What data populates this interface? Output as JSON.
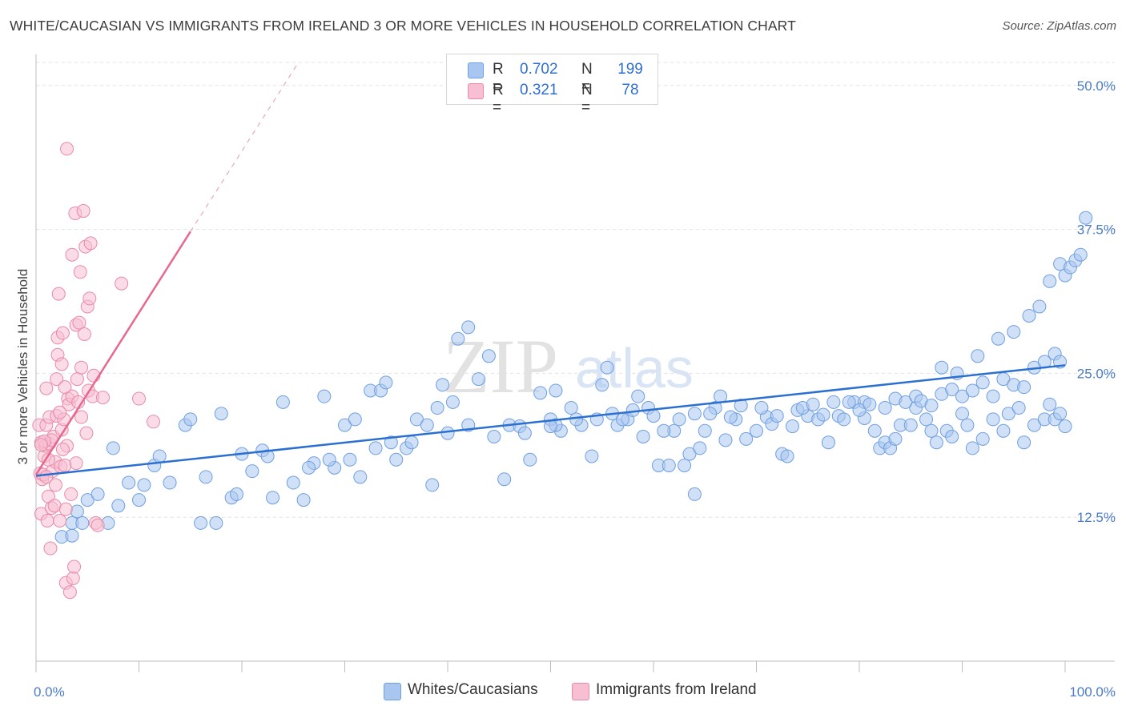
{
  "title": "WHITE/CAUCASIAN VS IMMIGRANTS FROM IRELAND 3 OR MORE VEHICLES IN HOUSEHOLD CORRELATION CHART",
  "source": "Source: ZipAtlas.com",
  "watermark": {
    "zip": "ZIP",
    "atlas": "atlas"
  },
  "legend": {
    "rows": [
      {
        "r_label": "R =",
        "r_value": "0.702",
        "n_label": "N =",
        "n_value": "199",
        "color": "#a9c6f0",
        "border": "#6f9fe0"
      },
      {
        "r_label": "R =",
        "r_value": "0.321",
        "n_label": "N =",
        "n_value": "78",
        "color": "#f7bfd1",
        "border": "#e88aa8"
      }
    ]
  },
  "bottom_legend": {
    "items": [
      {
        "label": "Whites/Caucasians",
        "color": "#a9c6f0",
        "border": "#6f9fe0"
      },
      {
        "label": "Immigrants from Ireland",
        "color": "#f7bfd1",
        "border": "#e88aa8"
      }
    ]
  },
  "chart_data": {
    "type": "scatter",
    "title": "WHITE/CAUCASIAN VS IMMIGRANTS FROM IRELAND 3 OR MORE VEHICLES IN HOUSEHOLD CORRELATION CHART",
    "xlabel": "",
    "ylabel": "3 or more Vehicles in Household",
    "xlim": [
      0,
      100
    ],
    "ylim": [
      0,
      52
    ],
    "x_tick_labels": [
      "0.0%",
      "100.0%"
    ],
    "y_ticks": [
      12.5,
      25.0,
      37.5,
      50.0
    ],
    "y_tick_labels": [
      "12.5%",
      "25.0%",
      "37.5%",
      "50.0%"
    ],
    "grid": true,
    "series": [
      {
        "name": "Whites/Caucasians",
        "color": "#a9c6f0",
        "stroke": "#6f9fe0",
        "trend": {
          "x": [
            0,
            100
          ],
          "y": [
            16.1,
            25.7
          ],
          "color": "#2b6fd0"
        },
        "points": [
          [
            3.5,
            12.0
          ],
          [
            2.5,
            10.8
          ],
          [
            3.5,
            10.9
          ],
          [
            4.0,
            13.0
          ],
          [
            4.5,
            12.0
          ],
          [
            5.0,
            14.0
          ],
          [
            6.0,
            14.5
          ],
          [
            7.0,
            12.0
          ],
          [
            7.5,
            18.5
          ],
          [
            8.0,
            13.5
          ],
          [
            9.0,
            15.5
          ],
          [
            10.0,
            14.0
          ],
          [
            10.5,
            15.3
          ],
          [
            11.5,
            17.0
          ],
          [
            12.0,
            17.8
          ],
          [
            13.0,
            15.5
          ],
          [
            14.5,
            20.5
          ],
          [
            15.0,
            21.0
          ],
          [
            16.0,
            12.0
          ],
          [
            16.5,
            16.0
          ],
          [
            17.5,
            12.0
          ],
          [
            18.0,
            21.5
          ],
          [
            19.0,
            14.2
          ],
          [
            19.5,
            14.5
          ],
          [
            20.0,
            18.0
          ],
          [
            21.0,
            16.5
          ],
          [
            22.0,
            18.3
          ],
          [
            22.5,
            17.8
          ],
          [
            23.0,
            14.2
          ],
          [
            24.0,
            22.5
          ],
          [
            25.0,
            15.5
          ],
          [
            26.0,
            14.0
          ],
          [
            27.0,
            17.2
          ],
          [
            28.0,
            23.0
          ],
          [
            29.0,
            16.8
          ],
          [
            30.0,
            20.5
          ],
          [
            31.0,
            21.0
          ],
          [
            31.5,
            16.0
          ],
          [
            32.5,
            23.5
          ],
          [
            33.5,
            23.5
          ],
          [
            34.0,
            24.2
          ],
          [
            35.0,
            17.5
          ],
          [
            36.0,
            18.5
          ],
          [
            37.0,
            21.0
          ],
          [
            38.0,
            20.5
          ],
          [
            38.5,
            15.3
          ],
          [
            39.0,
            22.0
          ],
          [
            39.5,
            24.0
          ],
          [
            40.5,
            22.5
          ],
          [
            41.0,
            28.0
          ],
          [
            42.0,
            29.0
          ],
          [
            43.0,
            24.5
          ],
          [
            44.0,
            26.5
          ],
          [
            45.5,
            15.8
          ],
          [
            46.0,
            20.5
          ],
          [
            47.0,
            20.4
          ],
          [
            48.0,
            17.5
          ],
          [
            49.0,
            23.3
          ],
          [
            50.0,
            21.0
          ],
          [
            50.5,
            23.5
          ],
          [
            51.0,
            20.0
          ],
          [
            52.0,
            22.0
          ],
          [
            53.0,
            20.5
          ],
          [
            54.0,
            17.8
          ],
          [
            55.0,
            24.0
          ],
          [
            55.5,
            25.5
          ],
          [
            56.5,
            20.5
          ],
          [
            57.5,
            21.0
          ],
          [
            58.5,
            23.0
          ],
          [
            59.0,
            19.5
          ],
          [
            59.5,
            22.0
          ],
          [
            60.5,
            17.0
          ],
          [
            61.5,
            17.0
          ],
          [
            62.0,
            20.0
          ],
          [
            63.0,
            17.0
          ],
          [
            63.5,
            18.0
          ],
          [
            64.0,
            14.5
          ],
          [
            64.5,
            18.5
          ],
          [
            65.0,
            20.0
          ],
          [
            66.0,
            22.0
          ],
          [
            66.5,
            23.0
          ],
          [
            67.0,
            19.2
          ],
          [
            68.0,
            21.0
          ],
          [
            69.0,
            19.3
          ],
          [
            70.0,
            20.0
          ],
          [
            71.0,
            21.2
          ],
          [
            71.5,
            20.6
          ],
          [
            72.5,
            18.0
          ],
          [
            73.0,
            17.8
          ],
          [
            73.5,
            20.4
          ],
          [
            74.0,
            21.8
          ],
          [
            75.0,
            21.3
          ],
          [
            76.0,
            21.0
          ],
          [
            76.5,
            21.4
          ],
          [
            77.0,
            19.0
          ],
          [
            78.0,
            21.3
          ],
          [
            78.5,
            21.0
          ],
          [
            79.5,
            22.5
          ],
          [
            80.5,
            21.1
          ],
          [
            80.5,
            22.5
          ],
          [
            81.5,
            20.0
          ],
          [
            82.0,
            18.5
          ],
          [
            82.5,
            19.0
          ],
          [
            83.0,
            18.5
          ],
          [
            83.5,
            19.3
          ],
          [
            84.0,
            20.5
          ],
          [
            85.0,
            20.5
          ],
          [
            85.5,
            22.0
          ],
          [
            86.5,
            21.0
          ],
          [
            87.0,
            20.0
          ],
          [
            87.5,
            19.0
          ],
          [
            88.5,
            20.0
          ],
          [
            89.0,
            19.5
          ],
          [
            90.0,
            21.5
          ],
          [
            90.5,
            20.5
          ],
          [
            91.0,
            18.5
          ],
          [
            92.0,
            19.3
          ],
          [
            93.0,
            21.0
          ],
          [
            94.0,
            20.0
          ],
          [
            94.5,
            21.5
          ],
          [
            95.5,
            22.0
          ],
          [
            96.0,
            19.0
          ],
          [
            97.0,
            20.5
          ],
          [
            98.0,
            21.0
          ],
          [
            98.5,
            22.3
          ],
          [
            99.0,
            21.0
          ],
          [
            99.5,
            21.5
          ],
          [
            100.0,
            20.4
          ],
          [
            50.5,
            20.5
          ],
          [
            50.0,
            20.4
          ],
          [
            47.5,
            19.8
          ],
          [
            44.5,
            19.5
          ],
          [
            42.0,
            20.5
          ],
          [
            40.0,
            19.8
          ],
          [
            36.5,
            19.0
          ],
          [
            34.5,
            19.0
          ],
          [
            33.0,
            18.5
          ],
          [
            30.5,
            17.5
          ],
          [
            28.5,
            17.5
          ],
          [
            26.5,
            16.8
          ],
          [
            52.5,
            21.0
          ],
          [
            54.5,
            21.0
          ],
          [
            56.0,
            21.5
          ],
          [
            57.0,
            21.0
          ],
          [
            58.0,
            21.8
          ],
          [
            60.0,
            21.3
          ],
          [
            61.0,
            20.0
          ],
          [
            62.5,
            21.0
          ],
          [
            64.0,
            21.5
          ],
          [
            65.5,
            21.5
          ],
          [
            67.5,
            21.2
          ],
          [
            68.5,
            22.2
          ],
          [
            70.5,
            22.0
          ],
          [
            72.0,
            21.3
          ],
          [
            74.5,
            22.0
          ],
          [
            75.5,
            22.3
          ],
          [
            77.5,
            22.5
          ],
          [
            79.0,
            22.5
          ],
          [
            80.0,
            21.8
          ],
          [
            81.0,
            22.3
          ],
          [
            82.5,
            22.0
          ],
          [
            83.5,
            22.8
          ],
          [
            84.5,
            22.5
          ],
          [
            85.5,
            23.0
          ],
          [
            86.0,
            22.6
          ],
          [
            87.0,
            22.2
          ],
          [
            88.0,
            23.2
          ],
          [
            89.0,
            23.6
          ],
          [
            90.0,
            23.0
          ],
          [
            91.0,
            23.5
          ],
          [
            92.0,
            24.2
          ],
          [
            93.0,
            23.0
          ],
          [
            94.0,
            24.5
          ],
          [
            95.0,
            24.0
          ],
          [
            96.0,
            23.8
          ],
          [
            97.0,
            25.5
          ],
          [
            98.0,
            26.0
          ],
          [
            99.0,
            26.7
          ],
          [
            99.5,
            26.0
          ],
          [
            88.0,
            25.5
          ],
          [
            89.5,
            25.0
          ],
          [
            91.5,
            26.5
          ],
          [
            93.5,
            28.0
          ],
          [
            95.0,
            28.6
          ],
          [
            96.5,
            30.0
          ],
          [
            97.5,
            30.8
          ],
          [
            98.5,
            33.0
          ],
          [
            99.5,
            34.5
          ],
          [
            100.0,
            33.5
          ],
          [
            100.5,
            34.2
          ],
          [
            101.0,
            34.8
          ],
          [
            101.5,
            35.3
          ],
          [
            102.0,
            38.5
          ]
        ]
      },
      {
        "name": "Immigrants from Ireland",
        "color": "#f7bfd1",
        "stroke": "#e88aa8",
        "trend": {
          "x": [
            0,
            15
          ],
          "y": [
            16.2,
            37.3
          ],
          "color": "#e8688f",
          "dashed_extension": {
            "x": [
              15,
              25.5
            ],
            "y": [
              37.3,
              52.0
            ]
          }
        },
        "points": [
          [
            0.3,
            20.5
          ],
          [
            0.4,
            16.3
          ],
          [
            0.5,
            12.8
          ],
          [
            0.5,
            19.0
          ],
          [
            0.6,
            15.8
          ],
          [
            0.7,
            16.2
          ],
          [
            0.8,
            17.8
          ],
          [
            0.9,
            18.7
          ],
          [
            1.0,
            20.5
          ],
          [
            1.0,
            23.7
          ],
          [
            1.1,
            12.2
          ],
          [
            1.2,
            14.3
          ],
          [
            1.3,
            18.9
          ],
          [
            1.3,
            21.2
          ],
          [
            1.4,
            9.8
          ],
          [
            1.5,
            13.3
          ],
          [
            1.6,
            16.5
          ],
          [
            1.7,
            19.5
          ],
          [
            1.8,
            13.5
          ],
          [
            1.9,
            17.3
          ],
          [
            2.0,
            21.3
          ],
          [
            2.0,
            24.5
          ],
          [
            2.1,
            26.6
          ],
          [
            2.1,
            28.1
          ],
          [
            2.2,
            31.9
          ],
          [
            2.3,
            12.2
          ],
          [
            2.4,
            16.9
          ],
          [
            2.5,
            20.1
          ],
          [
            2.5,
            25.8
          ],
          [
            2.6,
            28.5
          ],
          [
            2.7,
            21.0
          ],
          [
            2.8,
            17.0
          ],
          [
            2.9,
            13.2
          ],
          [
            2.9,
            6.8
          ],
          [
            3.0,
            18.7
          ],
          [
            3.0,
            44.5
          ],
          [
            3.1,
            22.8
          ],
          [
            3.2,
            22.3
          ],
          [
            3.3,
            6.0
          ],
          [
            3.4,
            14.5
          ],
          [
            3.5,
            23.0
          ],
          [
            3.5,
            35.3
          ],
          [
            3.6,
            7.2
          ],
          [
            3.7,
            8.2
          ],
          [
            3.8,
            38.9
          ],
          [
            3.9,
            29.2
          ],
          [
            4.0,
            24.5
          ],
          [
            4.1,
            22.5
          ],
          [
            4.2,
            29.4
          ],
          [
            4.3,
            33.8
          ],
          [
            4.4,
            21.2
          ],
          [
            4.4,
            25.5
          ],
          [
            4.6,
            39.1
          ],
          [
            4.7,
            28.4
          ],
          [
            4.8,
            36.0
          ],
          [
            4.9,
            19.8
          ],
          [
            5.0,
            30.8
          ],
          [
            5.1,
            23.5
          ],
          [
            5.2,
            31.5
          ],
          [
            5.3,
            36.3
          ],
          [
            5.5,
            23.0
          ],
          [
            5.6,
            24.8
          ],
          [
            5.8,
            12.0
          ],
          [
            6.0,
            11.8
          ],
          [
            6.5,
            22.9
          ],
          [
            8.3,
            32.8
          ],
          [
            10.0,
            22.8
          ],
          [
            11.4,
            20.8
          ],
          [
            1.0,
            16.0
          ],
          [
            1.5,
            19.2
          ],
          [
            2.3,
            21.6
          ],
          [
            2.8,
            23.8
          ],
          [
            0.8,
            19.1
          ],
          [
            1.9,
            15.3
          ],
          [
            2.6,
            18.4
          ],
          [
            3.9,
            17.2
          ],
          [
            0.5,
            18.8
          ],
          [
            1.2,
            17.5
          ]
        ]
      }
    ]
  }
}
